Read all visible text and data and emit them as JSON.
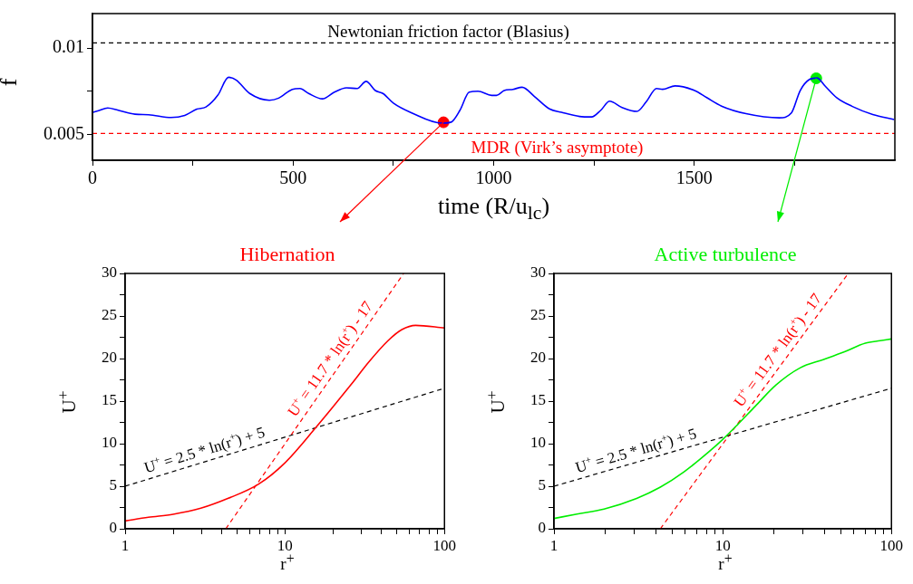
{
  "chart_data": [
    {
      "type": "line",
      "xlabel": "time (R/u$_{lc}$)",
      "ylabel": "f",
      "xlim": [
        0,
        2000
      ],
      "ylim": [
        0.0035,
        0.012
      ],
      "xticks": [
        0,
        {
          "value": 250,
          "label": null
        },
        500,
        {
          "value": 750,
          "label": null
        },
        1000,
        {
          "value": 1250,
          "label": null
        },
        1500,
        {
          "value": 1750,
          "label": null
        }
      ],
      "yticks": [
        0.005,
        {
          "value": 0.0075,
          "label": null
        },
        0.01
      ],
      "series": [
        {
          "type": "line",
          "color": "#0000ff",
          "x": [
            0,
            15,
            38,
            64,
            106,
            140,
            196,
            230,
            260,
            283,
            313,
            339,
            358,
            392,
            441,
            464,
            498,
            517,
            539,
            573,
            603,
            633,
            660,
            682,
            705,
            724,
            750,
            796,
            871,
            894,
            916,
            939,
            961,
            995,
            1007,
            1026,
            1048,
            1071,
            1101,
            1139,
            1169,
            1214,
            1244,
            1267,
            1289,
            1320,
            1357,
            1380,
            1406,
            1421,
            1452,
            1501,
            1531,
            1568,
            1629,
            1712,
            1742,
            1764,
            1787,
            1806,
            1825,
            1855,
            1893,
            1945,
            1998
          ],
          "values": [
            0.00627,
            0.00637,
            0.00653,
            0.0064,
            0.00617,
            0.00614,
            0.00598,
            0.0061,
            0.00646,
            0.00659,
            0.00729,
            0.00831,
            0.00815,
            0.00737,
            0.00698,
            0.0071,
            0.00761,
            0.00766,
            0.00737,
            0.00706,
            0.00745,
            0.0077,
            0.00766,
            0.00807,
            0.00754,
            0.00737,
            0.00681,
            0.00624,
            0.00565,
            0.00571,
            0.0064,
            0.00745,
            0.0075,
            0.00726,
            0.00726,
            0.00754,
            0.00761,
            0.00773,
            0.00721,
            0.00648,
            0.00628,
            0.00604,
            0.00601,
            0.0064,
            0.00692,
            0.00656,
            0.00633,
            0.00688,
            0.00766,
            0.00761,
            0.00781,
            0.00754,
            0.00713,
            0.00664,
            0.0062,
            0.00596,
            0.00624,
            0.00754,
            0.00818,
            0.00827,
            0.00783,
            0.00713,
            0.00663,
            0.00615,
            0.00586
          ]
        },
        {
          "type": "scatter",
          "marker": "circle",
          "color": "#ff0000",
          "x": [
            875
          ],
          "values": [
            0.0057
          ]
        },
        {
          "type": "scatter",
          "marker": "circle",
          "color": "#00ee00",
          "x": [
            1804
          ],
          "values": [
            0.00825
          ]
        }
      ],
      "ref_lines": [
        {
          "axis": "y",
          "value": 0.0103,
          "label": "Newtonian friction factor (Blasius)",
          "color": "#000000",
          "line_style": "dashed"
        },
        {
          "axis": "y",
          "value": 0.00505,
          "label": "MDR (Virk’s asymptote)",
          "color": "#ff0000",
          "line_style": "dashed"
        }
      ],
      "grid": false,
      "legend": false
    },
    {
      "type": "line",
      "title": "Hibernation",
      "xlabel": "r$^{+}$",
      "ylabel": "U$^{+}$",
      "log": "x",
      "xlim": [
        1,
        100
      ],
      "ylim": [
        0,
        30
      ],
      "xticks": [
        1,
        {
          "value": 2,
          "label": null
        },
        {
          "value": 3,
          "label": null
        },
        {
          "value": 4,
          "label": null
        },
        {
          "value": 5,
          "label": null
        },
        {
          "value": 6,
          "label": null
        },
        {
          "value": 7,
          "label": null
        },
        {
          "value": 8,
          "label": null
        },
        {
          "value": 9,
          "label": null
        },
        10,
        {
          "value": 20,
          "label": null
        },
        {
          "value": 30,
          "label": null
        },
        {
          "value": 40,
          "label": null
        },
        {
          "value": 50,
          "label": null
        },
        {
          "value": 60,
          "label": null
        },
        {
          "value": 70,
          "label": null
        },
        {
          "value": 80,
          "label": null
        },
        {
          "value": 90,
          "label": null
        },
        100
      ],
      "yticks": [
        0,
        {
          "value": 2.5,
          "label": null
        },
        5,
        {
          "value": 7.5,
          "label": null
        },
        10,
        {
          "value": 12.5,
          "label": null
        },
        15,
        {
          "value": 17.5,
          "label": null
        },
        20,
        {
          "value": 22.5,
          "label": null
        },
        25,
        {
          "value": 27.5,
          "label": null
        },
        30
      ],
      "series": [
        {
          "type": "line",
          "color": "#ff0000",
          "x": [
            1,
            1.4,
            2,
            2.98,
            4.43,
            6.86,
            10,
            15.8,
            20,
            26.4,
            33.6,
            44.3,
            54.1,
            65.9,
            100
          ],
          "values": [
            0.92,
            1.35,
            1.7,
            2.41,
            3.58,
            5.25,
            7.73,
            11.99,
            14.3,
            17.1,
            19.6,
            22.1,
            23.4,
            23.9,
            23.6
          ]
        },
        {
          "type": "line",
          "color": "#000000",
          "line_style": "dashed",
          "x": [
            1,
            100
          ],
          "values": [
            5,
            16.51
          ]
        },
        {
          "type": "line",
          "color": "#ff0000",
          "line_style": "dashed",
          "x": [
            4.27,
            55.5
          ],
          "values": [
            0,
            30
          ]
        }
      ],
      "annotations": [
        {
          "text": "U$^{+}$ = 2.5 * ln(r$^{+}$) + 5",
          "x": 3.3,
          "y": 7.98
        },
        {
          "text": "U$^{+}$ = 11.7 * ln(r$^{+}$) - 17",
          "x": 22,
          "y": 19.2
        }
      ],
      "grid": false,
      "legend": false
    },
    {
      "type": "line",
      "title": "Active turbulence",
      "xlabel": "r$^{+}$",
      "ylabel": "U$^{+}$",
      "log": "x",
      "xlim": [
        1,
        100
      ],
      "ylim": [
        0,
        30
      ],
      "xticks": [
        1,
        {
          "value": 2,
          "label": null
        },
        {
          "value": 3,
          "label": null
        },
        {
          "value": 4,
          "label": null
        },
        {
          "value": 5,
          "label": null
        },
        {
          "value": 6,
          "label": null
        },
        {
          "value": 7,
          "label": null
        },
        {
          "value": 8,
          "label": null
        },
        {
          "value": 9,
          "label": null
        },
        10,
        {
          "value": 20,
          "label": null
        },
        {
          "value": 30,
          "label": null
        },
        {
          "value": 40,
          "label": null
        },
        {
          "value": 50,
          "label": null
        },
        {
          "value": 60,
          "label": null
        },
        {
          "value": 70,
          "label": null
        },
        {
          "value": 80,
          "label": null
        },
        {
          "value": 90,
          "label": null
        },
        100
      ],
      "yticks": [
        0,
        {
          "value": 2.5,
          "label": null
        },
        5,
        {
          "value": 7.5,
          "label": null
        },
        10,
        {
          "value": 12.5,
          "label": null
        },
        15,
        {
          "value": 17.5,
          "label": null
        },
        20,
        {
          "value": 22.5,
          "label": null
        },
        25,
        {
          "value": 27.5,
          "label": null
        },
        30
      ],
      "series": [
        {
          "type": "line",
          "color": "#00ee00",
          "x": [
            1,
            1.37,
            1.98,
            3.09,
            4.27,
            5.9,
            8.17,
            10,
            12.2,
            15.6,
            20.7,
            28.7,
            39.7,
            52.7,
            70,
            85.8,
            100
          ],
          "values": [
            1.21,
            1.73,
            2.32,
            3.57,
            4.89,
            6.69,
            8.95,
            10.5,
            12.2,
            14.4,
            16.9,
            18.9,
            19.9,
            20.8,
            21.8,
            22.1,
            22.3
          ]
        },
        {
          "type": "line",
          "color": "#000000",
          "line_style": "dashed",
          "x": [
            1,
            100
          ],
          "values": [
            5,
            16.51
          ]
        },
        {
          "type": "line",
          "color": "#ff0000",
          "line_style": "dashed",
          "x": [
            4.27,
            55.5
          ],
          "values": [
            0,
            30
          ]
        }
      ],
      "annotations": [
        {
          "text": "U$^{+}$ = 2.5 * ln(r$^{+}$) + 5",
          "x": 3.2,
          "y": 7.91
        },
        {
          "text": "U$^{+}$ = 11.7 * ln(r$^{+}$) - 17",
          "x": 24,
          "y": 20.2
        }
      ],
      "grid": false,
      "legend": false
    }
  ]
}
